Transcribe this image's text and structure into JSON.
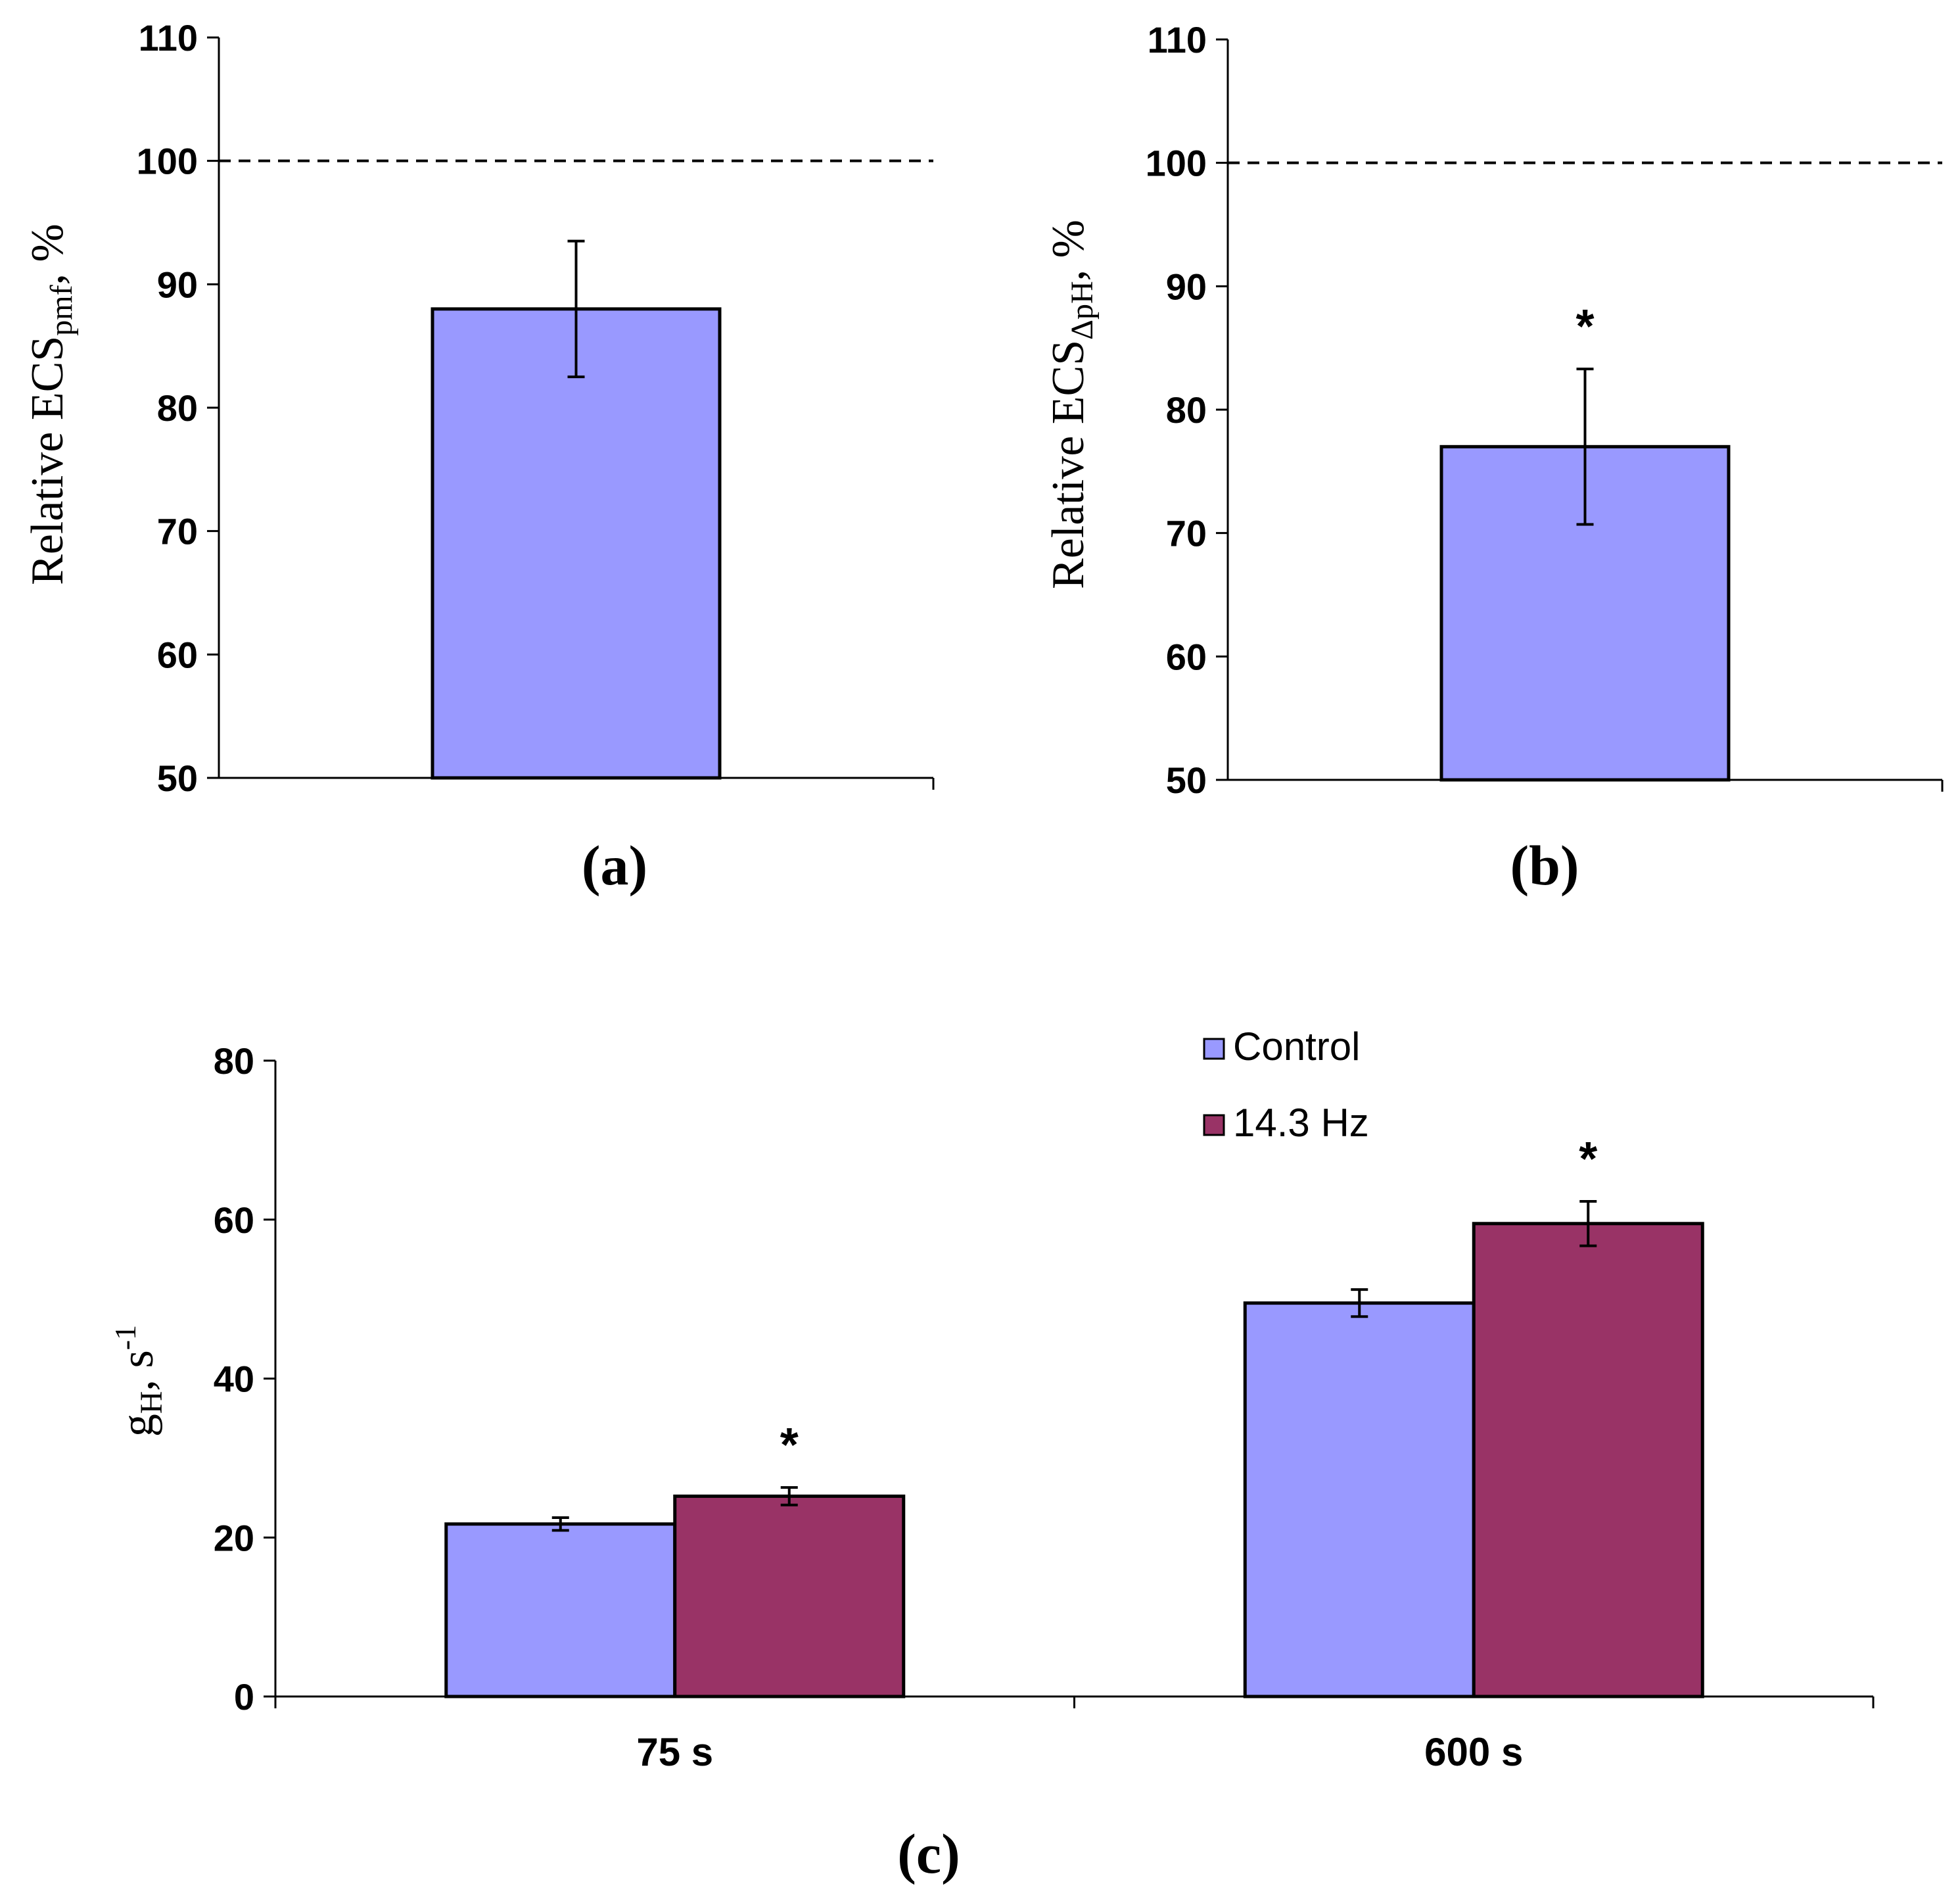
{
  "colors": {
    "control": "#9999ff",
    "treated": "#993366",
    "axis": "#000000"
  },
  "chart_data": [
    {
      "id": "a",
      "type": "bar",
      "panel_label": "(a)",
      "ylabel_main": "Relative ECS",
      "ylabel_sub": "pmf",
      "ylabel_tail": ", %",
      "ylim": [
        50,
        110
      ],
      "yticks": [
        50,
        60,
        70,
        80,
        90,
        100,
        110
      ],
      "reference_line": 100,
      "categories": [
        ""
      ],
      "series": [
        {
          "name": "",
          "values": [
            88
          ],
          "errors": [
            5.5
          ],
          "color_key": "control"
        }
      ],
      "annotations": []
    },
    {
      "id": "b",
      "type": "bar",
      "panel_label": "(b)",
      "ylabel_main": "Relative ECS",
      "ylabel_sub": "ΔpH",
      "ylabel_tail": ", %",
      "ylim": [
        50,
        110
      ],
      "yticks": [
        50,
        60,
        70,
        80,
        90,
        100,
        110
      ],
      "reference_line": 100,
      "categories": [
        ""
      ],
      "series": [
        {
          "name": "",
          "values": [
            77
          ],
          "errors": [
            6.3
          ],
          "color_key": "control"
        }
      ],
      "annotations": [
        {
          "text": "*",
          "category": 0,
          "series": 0
        }
      ]
    },
    {
      "id": "c",
      "type": "bar",
      "panel_label": "(c)",
      "ylabel_main": "g",
      "ylabel_sub": "H",
      "ylabel_tail": ", s",
      "ylabel_sup": "-1",
      "ylim": [
        0,
        80
      ],
      "yticks": [
        0,
        20,
        40,
        60,
        80
      ],
      "categories": [
        "75 s",
        "600 s"
      ],
      "series": [
        {
          "name": "Control",
          "values": [
            21.7,
            49.5
          ],
          "errors": [
            0.8,
            1.7
          ],
          "color_key": "control"
        },
        {
          "name": "14.3 Hz",
          "values": [
            25.2,
            59.5
          ],
          "errors": [
            1.1,
            2.8
          ],
          "color_key": "treated"
        }
      ],
      "legend_position": "top-right",
      "annotations": [
        {
          "text": "*",
          "category": 0,
          "series": 1
        },
        {
          "text": "*",
          "category": 1,
          "series": 1
        }
      ]
    }
  ]
}
